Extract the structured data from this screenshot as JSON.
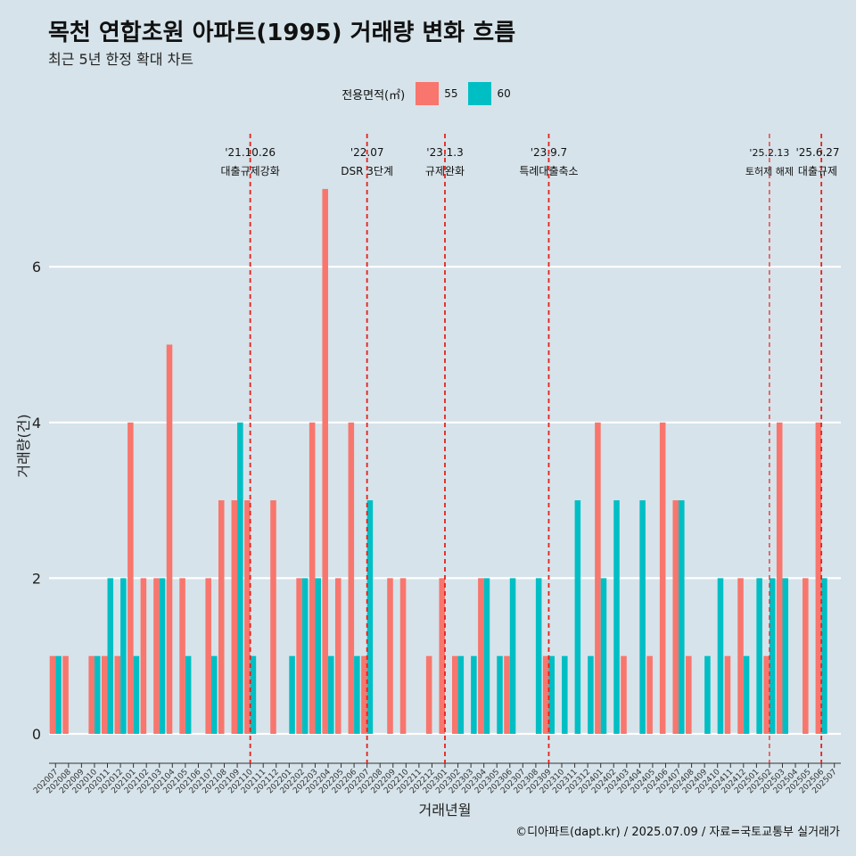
{
  "header": {
    "title": "목천 연합초원 아파트(1995) 거래량 변화 흐름",
    "subtitle": "최근 5년 한정 확대 차트"
  },
  "legend": {
    "title": "전용면적(㎡)",
    "items": [
      {
        "label": "55",
        "color": "#f8766d"
      },
      {
        "label": "60",
        "color": "#00bfc4"
      }
    ]
  },
  "caption": "©디아파트(dapt.kr) / 2025.07.09 / 자료=국토교통부 실거래가",
  "chart_data": {
    "type": "bar",
    "xlabel": "거래년월",
    "ylabel": "거래량(건)",
    "ylim": [
      0,
      7
    ],
    "yticks": [
      0,
      2,
      4,
      6
    ],
    "categories": [
      "202007",
      "202008",
      "202009",
      "202010",
      "202011",
      "202012",
      "202101",
      "202102",
      "202103",
      "202104",
      "202105",
      "202106",
      "202107",
      "202108",
      "202109",
      "202110",
      "202111",
      "202112",
      "202201",
      "202202",
      "202203",
      "202204",
      "202205",
      "202206",
      "202207",
      "202208",
      "202209",
      "202210",
      "202211",
      "202212",
      "202301",
      "202302",
      "202303",
      "202304",
      "202305",
      "202306",
      "202307",
      "202308",
      "202309",
      "202310",
      "202311",
      "202312",
      "202401",
      "202402",
      "202403",
      "202404",
      "202405",
      "202406",
      "202407",
      "202408",
      "202409",
      "202410",
      "202411",
      "202412",
      "202501",
      "202502",
      "202503",
      "202504",
      "202505",
      "202506",
      "202507"
    ],
    "series": [
      {
        "name": "55",
        "color": "#f8766d",
        "values": [
          1,
          1,
          0,
          1,
          1,
          1,
          4,
          2,
          2,
          5,
          2,
          0,
          2,
          3,
          3,
          3,
          0,
          3,
          0,
          2,
          4,
          7,
          2,
          4,
          1,
          0,
          2,
          2,
          0,
          1,
          2,
          1,
          0,
          2,
          0,
          1,
          0,
          0,
          1,
          0,
          0,
          0,
          4,
          0,
          1,
          0,
          1,
          4,
          3,
          1,
          0,
          0,
          1,
          2,
          0,
          1,
          4,
          0,
          2,
          4,
          0
        ]
      },
      {
        "name": "60",
        "color": "#00bfc4",
        "values": [
          1,
          0,
          0,
          1,
          2,
          2,
          1,
          0,
          2,
          0,
          1,
          0,
          1,
          0,
          4,
          1,
          0,
          0,
          1,
          2,
          2,
          1,
          0,
          1,
          3,
          0,
          0,
          0,
          0,
          0,
          0,
          1,
          1,
          2,
          1,
          2,
          0,
          2,
          1,
          1,
          3,
          1,
          2,
          3,
          0,
          3,
          0,
          0,
          3,
          0,
          1,
          2,
          0,
          1,
          2,
          2,
          2,
          0,
          0,
          2,
          0
        ]
      }
    ],
    "annotations": [
      {
        "date": "'21.10.26",
        "label": "대출규제강화",
        "month": "202110"
      },
      {
        "date": "'22.07",
        "label": "DSR 3단계",
        "month": "202207"
      },
      {
        "date": "'23.1.3",
        "label": "규제완화",
        "month": "202301"
      },
      {
        "date": "'23.9.7",
        "label": "특례대출축소",
        "month": "202309"
      },
      {
        "date": "'25.2.13",
        "label": "토허제 해제",
        "month": "202502"
      },
      {
        "date": "'25.6.27",
        "label": "대출규제",
        "month": "202506"
      }
    ]
  }
}
